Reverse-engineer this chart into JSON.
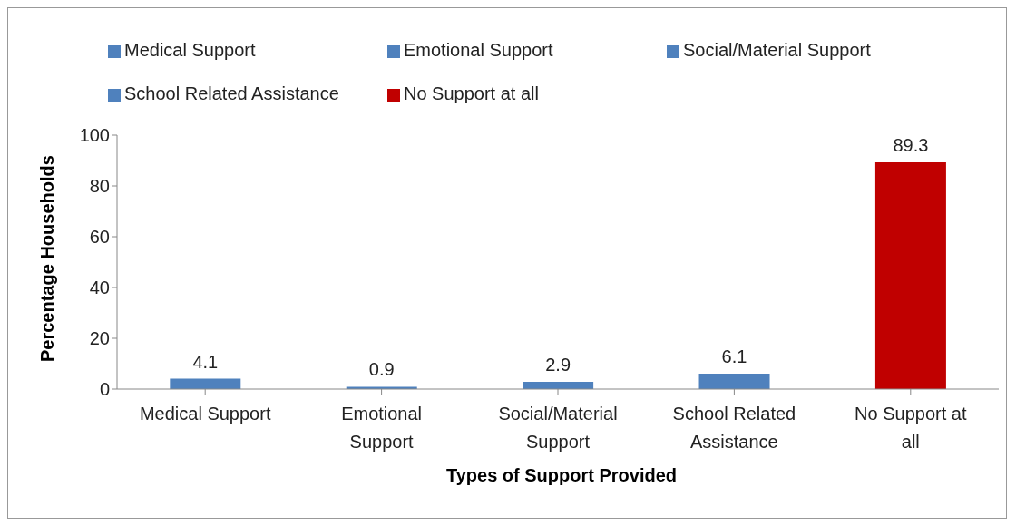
{
  "chart_data": {
    "type": "bar",
    "xlabel": "Types of Support Provided",
    "ylabel": "Percentage Households",
    "categories": [
      "Medical Support",
      "Emotional Support",
      "Social/Material Support",
      "School Related Assistance",
      "No Support at all"
    ],
    "series": [
      {
        "name": "Medical Support",
        "color": "#4f81bd",
        "values": [
          4.1,
          null,
          null,
          null,
          null
        ]
      },
      {
        "name": "Emotional Support",
        "color": "#4f81bd",
        "values": [
          null,
          0.9,
          null,
          null,
          null
        ]
      },
      {
        "name": "Social/Material Support",
        "color": "#4f81bd",
        "values": [
          null,
          null,
          2.9,
          null,
          null
        ]
      },
      {
        "name": "School Related Assistance",
        "color": "#4f81bd",
        "values": [
          null,
          null,
          null,
          6.1,
          null
        ]
      },
      {
        "name": "No Support at all",
        "color": "#c00000",
        "values": [
          null,
          null,
          null,
          null,
          89.3
        ]
      }
    ],
    "stacked": true,
    "ylim": [
      0,
      100
    ],
    "yticks": [
      0,
      20,
      40,
      60,
      80,
      100
    ],
    "grid": false,
    "legend": "top",
    "data_labels": true
  }
}
